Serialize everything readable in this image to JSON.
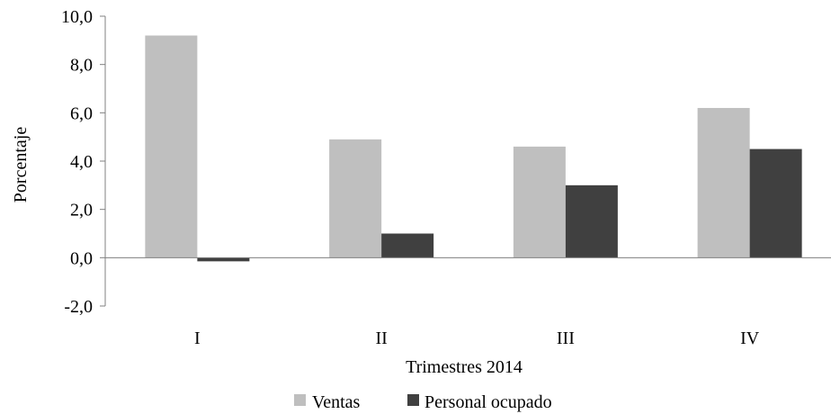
{
  "chart_data": {
    "type": "bar",
    "title": "",
    "xlabel": "Trimestres 2014",
    "ylabel": "Porcentaje",
    "categories": [
      "I",
      "II",
      "III",
      "IV"
    ],
    "ylim": [
      -2,
      10
    ],
    "yticks": [
      "10,0",
      "8,0",
      "6,0",
      "4,0",
      "2,0",
      "0,0",
      "-2,0"
    ],
    "ytick_values": [
      10,
      8,
      6,
      4,
      2,
      0,
      -2
    ],
    "grid": false,
    "legend_position": "bottom",
    "series": [
      {
        "name": "Ventas",
        "color": "#bfbfbf",
        "values": [
          9.2,
          4.9,
          4.6,
          6.2
        ]
      },
      {
        "name": "Personal ocupado",
        "color": "#404040",
        "values": [
          -0.15,
          1.0,
          3.0,
          4.5
        ]
      }
    ]
  }
}
